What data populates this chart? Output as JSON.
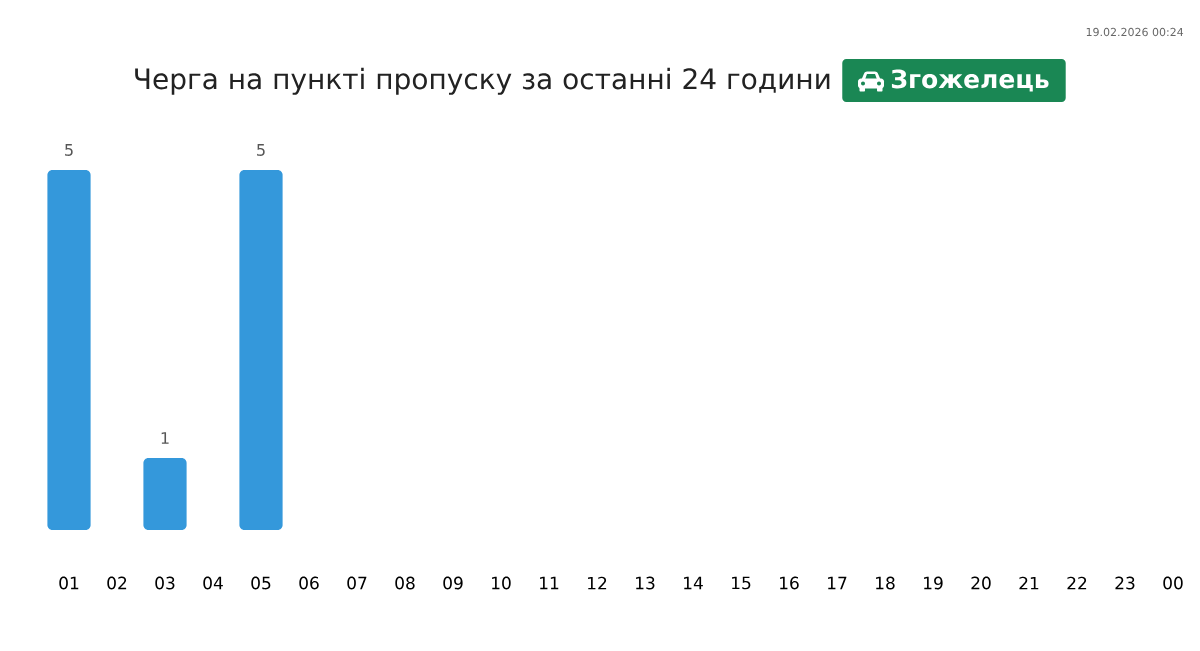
{
  "chart_data": {
    "type": "bar",
    "title": "Черга на пункті пропуску за останні 24 години",
    "subtitle": "Згожелець",
    "categories": [
      "01",
      "02",
      "03",
      "04",
      "05",
      "06",
      "07",
      "08",
      "09",
      "10",
      "11",
      "12",
      "13",
      "14",
      "15",
      "16",
      "17",
      "18",
      "19",
      "20",
      "21",
      "22",
      "23",
      "00"
    ],
    "values": [
      5,
      null,
      1,
      null,
      5,
      null,
      null,
      null,
      null,
      null,
      null,
      null,
      null,
      null,
      null,
      null,
      null,
      null,
      null,
      null,
      null,
      null,
      null,
      null
    ],
    "color": "#3498db",
    "ylim": [
      0,
      5
    ],
    "data_labels": true,
    "tick_labels": "x",
    "annotations": [
      "19.02.2026 00:24"
    ]
  }
}
